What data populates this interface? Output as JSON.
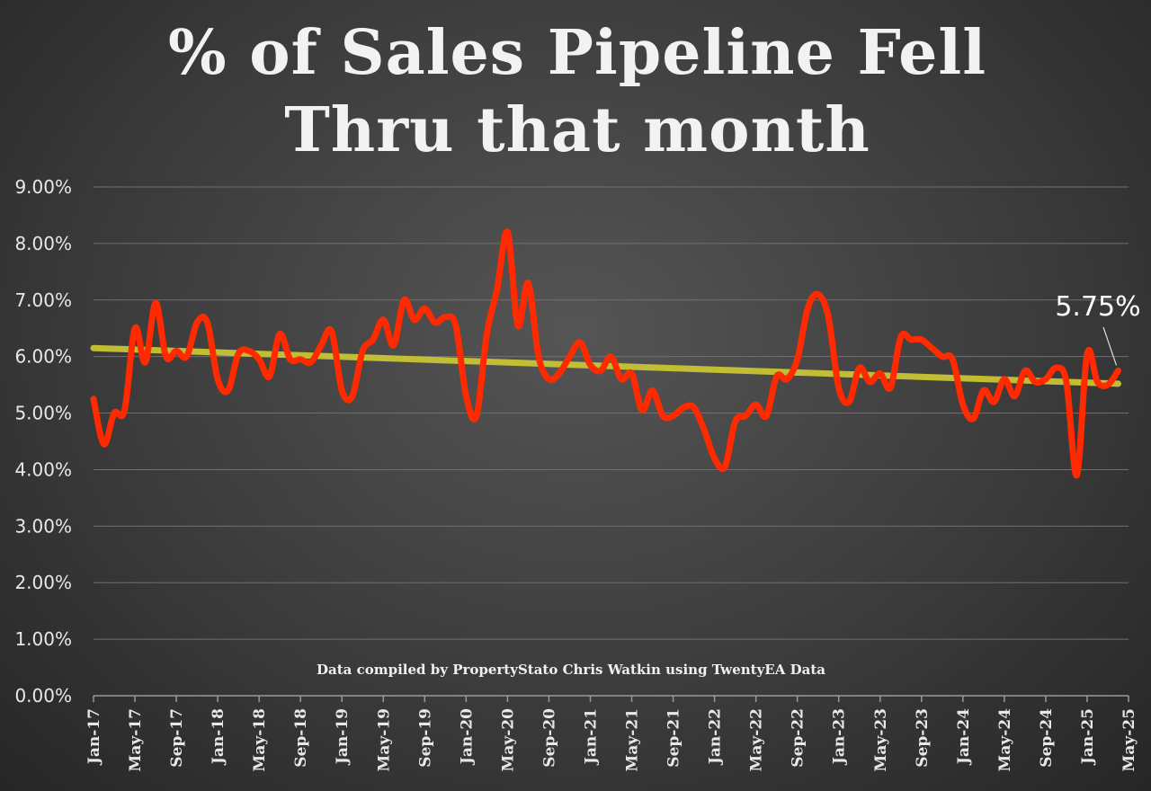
{
  "chart_data": {
    "type": "line",
    "title": [
      "% of Sales Pipeline Fell",
      "Thru that month"
    ],
    "annotation_source": "Data compiled by PropertyStato Chris Watkin using TwentyEA Data",
    "callout_label": "5.75%",
    "ylim": [
      0,
      9
    ],
    "y_ticks": [
      "0.00%",
      "1.00%",
      "2.00%",
      "3.00%",
      "4.00%",
      "5.00%",
      "6.00%",
      "7.00%",
      "8.00%",
      "9.00%"
    ],
    "x_ticks": [
      "Jan-17",
      "May-17",
      "Sep-17",
      "Jan-18",
      "May-18",
      "Sep-18",
      "Jan-19",
      "May-19",
      "Sep-19",
      "Jan-20",
      "May-20",
      "Sep-20",
      "Jan-21",
      "May-21",
      "Sep-21",
      "Jan-22",
      "May-22",
      "Sep-22",
      "Jan-23",
      "May-23",
      "Sep-23",
      "Jan-24",
      "May-24",
      "Sep-24",
      "Jan-25",
      "May-25"
    ],
    "grid": true,
    "colors": {
      "series": "#ff2a00",
      "trend": "#c8c434",
      "grid": "#707070",
      "axis": "#9a9a9a"
    },
    "series": [
      {
        "start": "Jan-17",
        "values": [
          5.25,
          4.45,
          5.0,
          5.05,
          6.5,
          5.9,
          6.95,
          6.0,
          6.1,
          6.0,
          6.6,
          6.6,
          5.6,
          5.4,
          6.05,
          6.1,
          5.95,
          5.65,
          6.4,
          5.95,
          5.95,
          5.9,
          6.2,
          6.45,
          5.4,
          5.3,
          6.1,
          6.3,
          6.65,
          6.2,
          7.0,
          6.65,
          6.85,
          6.6,
          6.7,
          6.55,
          5.3,
          4.95,
          6.4,
          7.2,
          8.2,
          6.55,
          7.3,
          6.0,
          5.6,
          5.7,
          6.0,
          6.25,
          5.85,
          5.75,
          6.0,
          5.6,
          5.7,
          5.05,
          5.4,
          4.95,
          4.95,
          5.1,
          5.1,
          4.7,
          4.2,
          4.05,
          4.85,
          4.95,
          5.15,
          4.95,
          5.65,
          5.6,
          5.95,
          6.85,
          7.1,
          6.7,
          5.45,
          5.2,
          5.8,
          5.55,
          5.7,
          5.45,
          6.35,
          6.3,
          6.3,
          6.15,
          6.0,
          5.95,
          5.15,
          4.9,
          5.4,
          5.2,
          5.6,
          5.3,
          5.75,
          5.55,
          5.6,
          5.8,
          5.55,
          3.9,
          6.05,
          5.55,
          5.5,
          5.75
        ]
      }
    ],
    "trendline": {
      "start_value": 6.15,
      "end_value": 5.52
    }
  }
}
